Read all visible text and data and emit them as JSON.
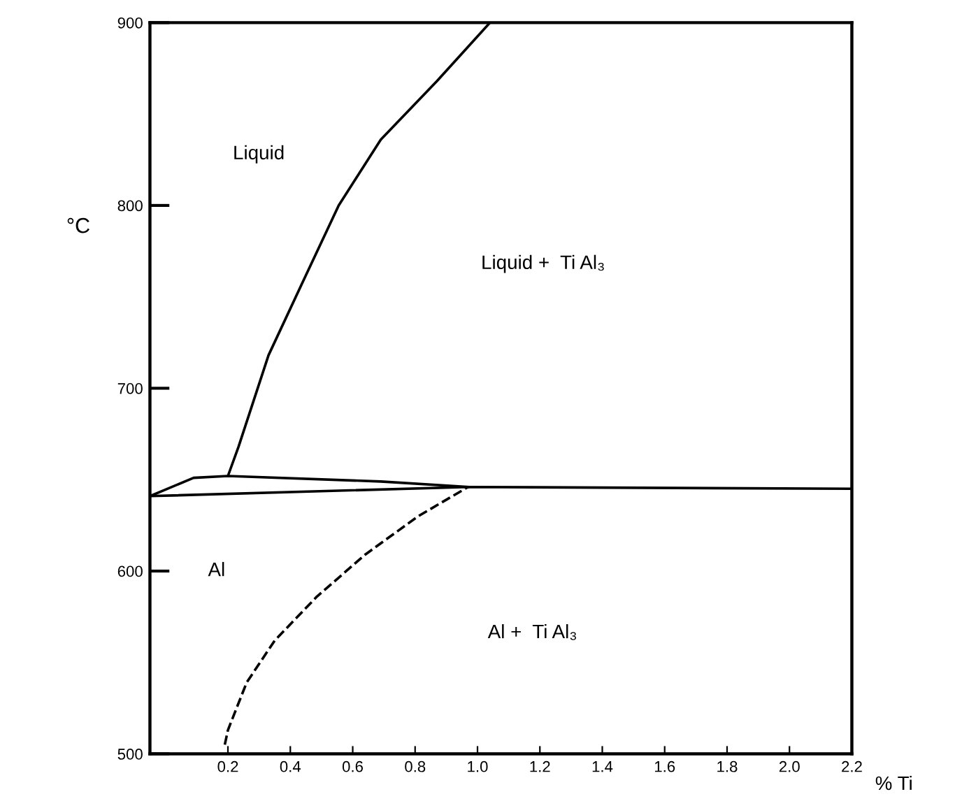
{
  "chart_data": {
    "type": "line",
    "xlabel": "% Ti",
    "ylabel": "°C",
    "xlim": [
      -0.05,
      2.2
    ],
    "ylim": [
      500,
      900
    ],
    "xticks": [
      0.2,
      0.4,
      0.6,
      0.8,
      {
        "value": 1.0,
        "label": "1.0"
      },
      1.2,
      1.4,
      1.6,
      1.8,
      {
        "value": 2.0,
        "label": "2.0"
      },
      2.2
    ],
    "yticks": [
      500,
      600,
      700,
      800,
      900
    ],
    "grid": false,
    "legend": false,
    "marker": "none",
    "series": [
      {
        "color": "#000000",
        "line_style": "solid",
        "x": [
          0.2,
          0.234,
          0.33,
          0.434,
          0.555,
          0.69,
          0.87,
          1.04
        ],
        "values": [
          652,
          668,
          718,
          756,
          800,
          836,
          868,
          900
        ]
      },
      {
        "color": "#000000",
        "line_style": "solid",
        "x": [
          -0.05,
          0.09,
          0.2,
          0.69,
          0.97
        ],
        "values": [
          641,
          651,
          652,
          649,
          646
        ]
      },
      {
        "color": "#000000",
        "line_style": "solid",
        "x": [
          -0.05,
          0.97,
          2.2
        ],
        "values": [
          641,
          646,
          645
        ]
      },
      {
        "color": "#000000",
        "line_style": "dashed",
        "x": [
          0.19,
          0.2,
          0.26,
          0.35,
          0.485,
          0.64,
          0.81,
          0.97
        ],
        "values": [
          505,
          513,
          539,
          562,
          586,
          609,
          630,
          646
        ]
      }
    ],
    "annotations": [
      "Liquid",
      "Liquid +  Ti Al₃",
      "Al",
      "Al +  Ti Al₃"
    ]
  }
}
